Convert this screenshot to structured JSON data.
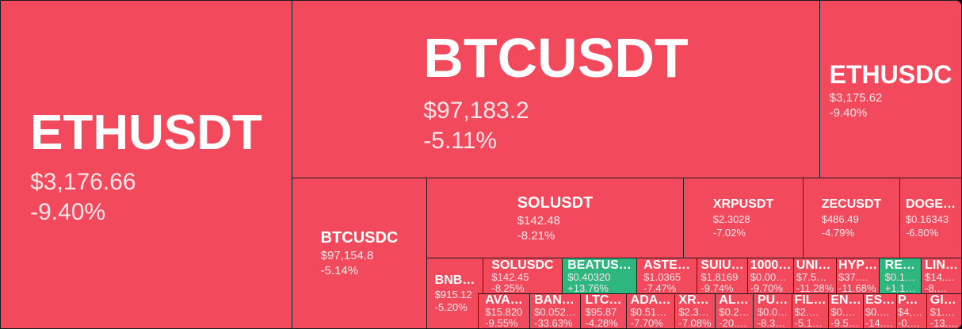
{
  "colors": {
    "down": "#F2495C",
    "up": "#2DB77E",
    "border": "#1c1d22"
  },
  "tiles": [
    {
      "symbol": "ETHUSDT",
      "price": "$3,176.66",
      "change": "-9.40%",
      "direction": "down"
    },
    {
      "symbol": "BTCUSDT",
      "price": "$97,183.2",
      "change": "-5.11%",
      "direction": "down"
    },
    {
      "symbol": "ETHUSDC",
      "price": "$3,175.62",
      "change": "-9.40%",
      "direction": "down"
    },
    {
      "symbol": "BTCUSDC",
      "price": "$97,154.8",
      "change": "-5.14%",
      "direction": "down"
    },
    {
      "symbol": "SOLUSDT",
      "price": "$142.48",
      "change": "-8.21%",
      "direction": "down"
    },
    {
      "symbol": "XRPUSDT",
      "price": "$2.3028",
      "change": "-7.02%",
      "direction": "down"
    },
    {
      "symbol": "ZECUSDT",
      "price": "$486.49",
      "change": "-4.79%",
      "direction": "down"
    },
    {
      "symbol": "DOGE…",
      "price": "$0.16343",
      "change": "-6.80%",
      "direction": "down"
    },
    {
      "symbol": "BNB…",
      "price": "$915.12",
      "change": "-5.20%",
      "direction": "down"
    },
    {
      "symbol": "SOLUSDC",
      "price": "$142.45",
      "change": "-8.25%",
      "direction": "down"
    },
    {
      "symbol": "BEATUS…",
      "price": "$0.40320",
      "change": "+13.76%",
      "direction": "up"
    },
    {
      "symbol": "ASTE…",
      "price": "$1.0365",
      "change": "-7.47%",
      "direction": "down"
    },
    {
      "symbol": "SUIU…",
      "price": "$1.8169",
      "change": "-9.74%",
      "direction": "down"
    },
    {
      "symbol": "1000…",
      "price": "$0.00…",
      "change": "-9.70%",
      "direction": "down"
    },
    {
      "symbol": "UNI…",
      "price": "$7.5…",
      "change": "-11.28%",
      "direction": "down"
    },
    {
      "symbol": "HYP…",
      "price": "$37.…",
      "change": "-11.68%",
      "direction": "down"
    },
    {
      "symbol": "RE…",
      "price": "$0.1…",
      "change": "+1.1…",
      "direction": "up"
    },
    {
      "symbol": "LIN…",
      "price": "$14.…",
      "change": "-8.…",
      "direction": "down"
    },
    {
      "symbol": "AVA…",
      "price": "$15.820",
      "change": "-9.55%",
      "direction": "down"
    },
    {
      "symbol": "BAN…",
      "price": "$0.052…",
      "change": "-33.63%",
      "direction": "down"
    },
    {
      "symbol": "LTC…",
      "price": "$95.87",
      "change": "-4.28%",
      "direction": "down"
    },
    {
      "symbol": "ADA…",
      "price": "$0.51…",
      "change": "-7.70%",
      "direction": "down"
    },
    {
      "symbol": "XR…",
      "price": "$2.3…",
      "change": "-7.08%",
      "direction": "down"
    },
    {
      "symbol": "AL…",
      "price": "$0.2…",
      "change": "-20.…",
      "direction": "down"
    },
    {
      "symbol": "PU…",
      "price": "$0.0…",
      "change": "-8.3…",
      "direction": "down"
    },
    {
      "symbol": "FIL…",
      "price": "$2.…",
      "change": "-5.1…",
      "direction": "down"
    },
    {
      "symbol": "EN…",
      "price": "$0.…",
      "change": "-9.5…",
      "direction": "down"
    },
    {
      "symbol": "ES…",
      "price": "$0.…",
      "change": "-14.…",
      "direction": "down"
    },
    {
      "symbol": "PA…",
      "price": "$4,…",
      "change": "-0.…",
      "direction": "down"
    },
    {
      "symbol": "GI…",
      "price": "$1.…",
      "change": "-13.…",
      "direction": "down"
    }
  ]
}
